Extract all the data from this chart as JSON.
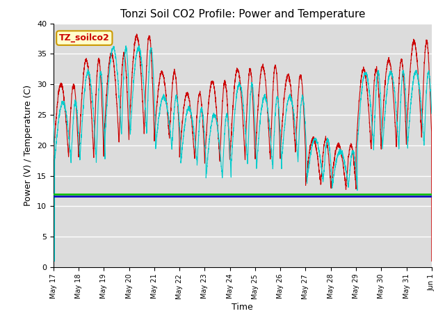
{
  "title": "Tonzi Soil CO2 Profile: Power and Temperature",
  "ylabel": "Power (V) / Temperature (C)",
  "xlabel": "Time",
  "ylim": [
    0,
    40
  ],
  "bg_color": "#dcdcdc",
  "annotation_text": "TZ_soilco2",
  "annotation_bg": "#ffffcc",
  "annotation_border": "#cc9900",
  "cr23x_temp_color": "#cc0000",
  "cr23x_volt_color": "#0000bb",
  "cr10x_volt_color": "#00bb00",
  "cr10x_temp_color": "#00cccc",
  "cr23x_volt_value": 11.6,
  "cr10x_volt_value": 12.0,
  "x_tick_labels": [
    "May 17",
    "May 18",
    "May 19",
    "May 20",
    "May 21",
    "May 22",
    "May 23",
    "May 24",
    "May 25",
    "May 26",
    "May 27",
    "May 28",
    "May 29",
    "May 30",
    "May 31",
    "Jun 1"
  ],
  "figsize": [
    6.4,
    4.8
  ],
  "dpi": 100
}
